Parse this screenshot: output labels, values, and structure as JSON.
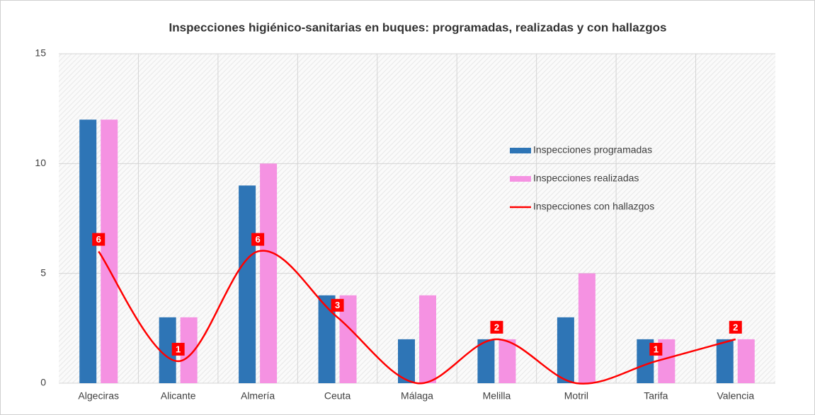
{
  "chart_data": {
    "type": "bar-line",
    "title": "Inspecciones higiénico-sanitarias en buques: programadas, realizadas y con hallazgos",
    "categories": [
      "Algeciras",
      "Alicante",
      "Almería",
      "Ceuta",
      "Málaga",
      "Melilla",
      "Motril",
      "Tarifa",
      "Valencia"
    ],
    "series": [
      {
        "name": "Inspecciones programadas",
        "type": "bar",
        "color": "#2e75b6",
        "values": [
          12,
          3,
          9,
          4,
          2,
          2,
          3,
          2,
          2
        ]
      },
      {
        "name": "Inspecciones realizadas",
        "type": "bar",
        "color": "#f592e2",
        "values": [
          12,
          3,
          10,
          4,
          4,
          2,
          5,
          2,
          2
        ]
      },
      {
        "name": "Inspecciones con hallazgos",
        "type": "line",
        "smooth": true,
        "color": "#ff0000",
        "data_labels": true,
        "values": [
          6,
          1,
          6,
          3,
          0,
          2,
          0,
          1,
          2
        ]
      }
    ],
    "ylim": [
      0,
      15
    ],
    "yticks": [
      0,
      5,
      10,
      15
    ],
    "grid": true,
    "legend_position": "right"
  }
}
